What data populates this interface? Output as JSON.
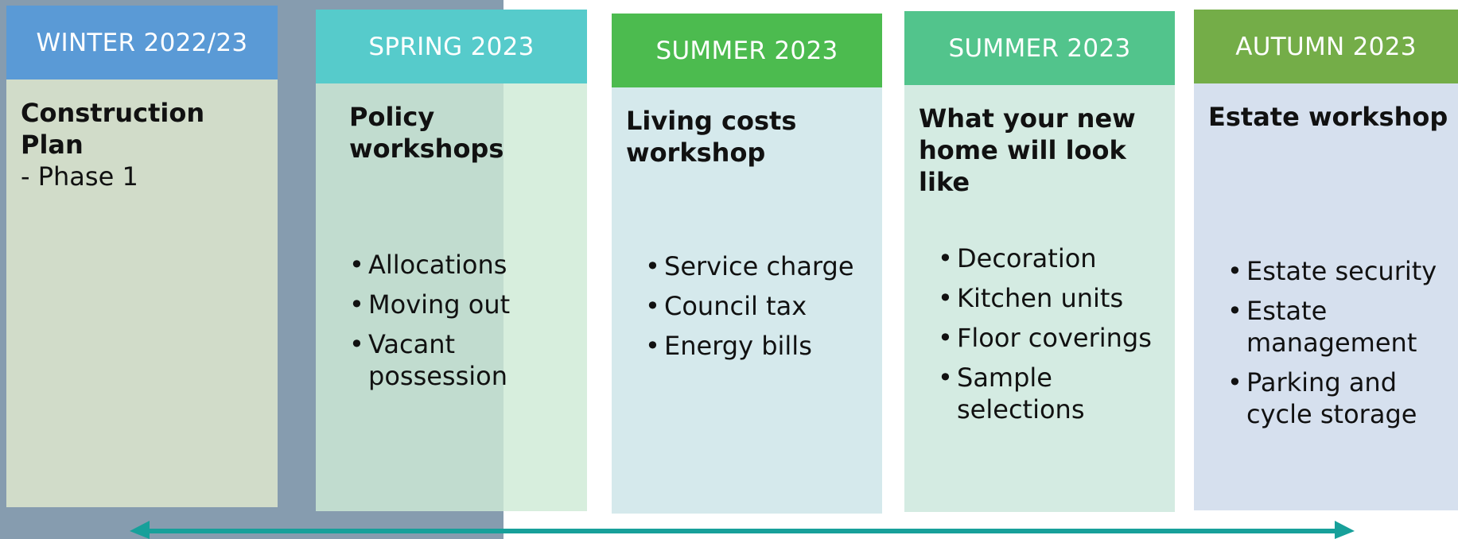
{
  "columns": [
    {
      "header": "WINTER 2022/23",
      "title": "Construction Plan",
      "subtitle": "- Phase 1",
      "bullets": []
    },
    {
      "header": "SPRING 2023",
      "title": "Policy workshops",
      "bullets": [
        "Allocations",
        "Moving out",
        "Vacant possession"
      ]
    },
    {
      "header": "SUMMER 2023",
      "title": "Living costs workshop",
      "bullets": [
        "Service charge",
        "Council tax",
        "Energy bills"
      ]
    },
    {
      "header": "SUMMER 2023",
      "title": "What your new home will look like",
      "bullets": [
        "Decoration",
        "Kitchen units",
        "Floor coverings",
        "Sample selections"
      ]
    },
    {
      "header": "AUTUMN 2023",
      "title": "Estate workshop",
      "bullets": [
        "Estate security",
        "Estate management",
        "Parking and cycle storage"
      ]
    }
  ]
}
